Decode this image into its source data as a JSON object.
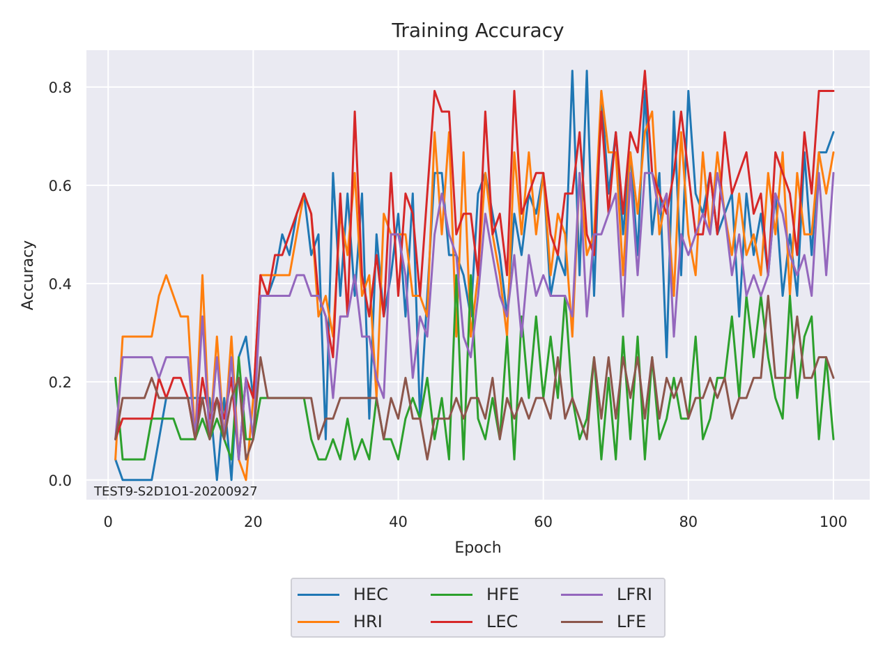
{
  "chart_data": {
    "type": "line",
    "title": "Training Accuracy",
    "xlabel": "Epoch",
    "ylabel": "Accuracy",
    "annotation": "TEST9-S2D1O1-20200927",
    "xlim": [
      -3,
      105
    ],
    "ylim": [
      -0.04,
      0.875
    ],
    "xticks": [
      0,
      20,
      40,
      60,
      80,
      100
    ],
    "yticks": [
      0.0,
      0.2,
      0.4,
      0.6,
      0.8
    ],
    "xtick_labels": [
      "0",
      "20",
      "40",
      "60",
      "80",
      "100"
    ],
    "ytick_labels": [
      "0.0",
      "0.2",
      "0.4",
      "0.6",
      "0.8"
    ],
    "grid": true,
    "legend_position": "below plot, centered, 3 columns",
    "x_start": 1,
    "series": [
      {
        "name": "HEC",
        "color": "#1f77b4",
        "values": [
          0.042,
          0.0,
          0.0,
          0.0,
          0.0,
          0.0,
          0.083,
          0.167,
          0.167,
          0.167,
          0.167,
          0.167,
          0.167,
          0.167,
          0.0,
          0.167,
          0.0,
          0.25,
          0.292,
          0.167,
          0.375,
          0.375,
          0.417,
          0.5,
          0.458,
          0.542,
          0.583,
          0.458,
          0.5,
          0.083,
          0.625,
          0.375,
          0.583,
          0.375,
          0.583,
          0.125,
          0.5,
          0.333,
          0.417,
          0.542,
          0.333,
          0.583,
          0.125,
          0.375,
          0.625,
          0.625,
          0.458,
          0.458,
          0.417,
          0.333,
          0.583,
          0.625,
          0.542,
          0.458,
          0.333,
          0.542,
          0.458,
          0.583,
          0.542,
          0.625,
          0.375,
          0.458,
          0.417,
          0.833,
          0.417,
          0.833,
          0.375,
          0.792,
          0.583,
          0.708,
          0.5,
          0.667,
          0.458,
          0.792,
          0.5,
          0.625,
          0.25,
          0.75,
          0.417,
          0.792,
          0.583,
          0.542,
          0.625,
          0.5,
          0.542,
          0.583,
          0.333,
          0.583,
          0.458,
          0.542,
          0.417,
          0.583,
          0.375,
          0.5,
          0.375,
          0.667,
          0.458,
          0.667,
          0.667,
          0.708
        ]
      },
      {
        "name": "HRI",
        "color": "#ff7f0e",
        "values": [
          0.042,
          0.292,
          0.292,
          0.292,
          0.292,
          0.292,
          0.375,
          0.417,
          0.375,
          0.333,
          0.333,
          0.083,
          0.417,
          0.083,
          0.292,
          0.083,
          0.292,
          0.042,
          0.0,
          0.167,
          0.417,
          0.417,
          0.417,
          0.417,
          0.417,
          0.5,
          0.583,
          0.542,
          0.333,
          0.375,
          0.292,
          0.542,
          0.458,
          0.625,
          0.375,
          0.417,
          0.167,
          0.542,
          0.5,
          0.5,
          0.5,
          0.375,
          0.375,
          0.333,
          0.708,
          0.5,
          0.708,
          0.292,
          0.667,
          0.292,
          0.417,
          0.625,
          0.5,
          0.417,
          0.292,
          0.667,
          0.5,
          0.667,
          0.5,
          0.625,
          0.417,
          0.542,
          0.5,
          0.292,
          0.625,
          0.458,
          0.5,
          0.792,
          0.667,
          0.667,
          0.417,
          0.667,
          0.542,
          0.708,
          0.75,
          0.5,
          0.583,
          0.375,
          0.708,
          0.5,
          0.417,
          0.667,
          0.5,
          0.667,
          0.542,
          0.458,
          0.583,
          0.458,
          0.5,
          0.417,
          0.625,
          0.5,
          0.667,
          0.375,
          0.625,
          0.5,
          0.5,
          0.667,
          0.583,
          0.667
        ]
      },
      {
        "name": "HFE",
        "color": "#2ca02c",
        "values": [
          0.208,
          0.042,
          0.042,
          0.042,
          0.042,
          0.125,
          0.125,
          0.125,
          0.125,
          0.083,
          0.083,
          0.083,
          0.125,
          0.083,
          0.125,
          0.083,
          0.042,
          0.25,
          0.083,
          0.083,
          0.167,
          0.167,
          0.167,
          0.167,
          0.167,
          0.167,
          0.167,
          0.083,
          0.042,
          0.042,
          0.083,
          0.042,
          0.125,
          0.042,
          0.083,
          0.042,
          0.167,
          0.083,
          0.083,
          0.042,
          0.125,
          0.167,
          0.125,
          0.208,
          0.083,
          0.167,
          0.042,
          0.417,
          0.042,
          0.417,
          0.125,
          0.083,
          0.167,
          0.083,
          0.292,
          0.042,
          0.333,
          0.167,
          0.333,
          0.167,
          0.292,
          0.167,
          0.375,
          0.167,
          0.083,
          0.125,
          0.25,
          0.042,
          0.208,
          0.042,
          0.292,
          0.083,
          0.292,
          0.042,
          0.25,
          0.083,
          0.125,
          0.208,
          0.125,
          0.125,
          0.292,
          0.083,
          0.125,
          0.208,
          0.208,
          0.333,
          0.167,
          0.375,
          0.25,
          0.375,
          0.25,
          0.167,
          0.125,
          0.375,
          0.167,
          0.292,
          0.333,
          0.083,
          0.25,
          0.083
        ]
      },
      {
        "name": "LEC",
        "color": "#d62728",
        "values": [
          0.083,
          0.125,
          0.125,
          0.125,
          0.125,
          0.125,
          0.208,
          0.167,
          0.208,
          0.208,
          0.167,
          0.083,
          0.208,
          0.125,
          0.167,
          0.125,
          0.208,
          0.042,
          0.208,
          0.167,
          0.417,
          0.375,
          0.458,
          0.458,
          0.5,
          0.542,
          0.583,
          0.542,
          0.375,
          0.333,
          0.25,
          0.583,
          0.333,
          0.75,
          0.417,
          0.333,
          0.458,
          0.333,
          0.625,
          0.375,
          0.583,
          0.542,
          0.375,
          0.583,
          0.792,
          0.75,
          0.75,
          0.5,
          0.542,
          0.542,
          0.417,
          0.75,
          0.5,
          0.542,
          0.417,
          0.792,
          0.542,
          0.583,
          0.625,
          0.625,
          0.5,
          0.458,
          0.583,
          0.583,
          0.708,
          0.5,
          0.458,
          0.75,
          0.542,
          0.708,
          0.542,
          0.708,
          0.667,
          0.833,
          0.625,
          0.583,
          0.542,
          0.625,
          0.75,
          0.625,
          0.5,
          0.5,
          0.625,
          0.5,
          0.708,
          0.583,
          0.625,
          0.667,
          0.542,
          0.583,
          0.417,
          0.667,
          0.625,
          0.583,
          0.458,
          0.708,
          0.583,
          0.792,
          0.792,
          0.792
        ]
      },
      {
        "name": "LFRI",
        "color": "#9467bd",
        "values": [
          0.083,
          0.25,
          0.25,
          0.25,
          0.25,
          0.25,
          0.208,
          0.25,
          0.25,
          0.25,
          0.25,
          0.083,
          0.333,
          0.083,
          0.25,
          0.083,
          0.25,
          0.042,
          0.208,
          0.083,
          0.375,
          0.375,
          0.375,
          0.375,
          0.375,
          0.417,
          0.417,
          0.375,
          0.375,
          0.333,
          0.167,
          0.333,
          0.333,
          0.417,
          0.292,
          0.292,
          0.208,
          0.167,
          0.5,
          0.5,
          0.417,
          0.208,
          0.333,
          0.292,
          0.5,
          0.583,
          0.5,
          0.458,
          0.292,
          0.25,
          0.375,
          0.542,
          0.458,
          0.375,
          0.333,
          0.458,
          0.292,
          0.458,
          0.375,
          0.417,
          0.375,
          0.375,
          0.375,
          0.333,
          0.625,
          0.333,
          0.5,
          0.5,
          0.542,
          0.583,
          0.333,
          0.625,
          0.417,
          0.625,
          0.625,
          0.542,
          0.583,
          0.292,
          0.5,
          0.458,
          0.5,
          0.542,
          0.5,
          0.625,
          0.542,
          0.417,
          0.5,
          0.375,
          0.417,
          0.375,
          0.417,
          0.583,
          0.542,
          0.458,
          0.417,
          0.458,
          0.375,
          0.625,
          0.417,
          0.625
        ]
      },
      {
        "name": "LFE",
        "color": "#8c564b",
        "values": [
          0.083,
          0.167,
          0.167,
          0.167,
          0.167,
          0.208,
          0.167,
          0.167,
          0.167,
          0.167,
          0.167,
          0.083,
          0.167,
          0.083,
          0.167,
          0.083,
          0.167,
          0.208,
          0.042,
          0.083,
          0.25,
          0.167,
          0.167,
          0.167,
          0.167,
          0.167,
          0.167,
          0.167,
          0.083,
          0.125,
          0.125,
          0.167,
          0.167,
          0.167,
          0.167,
          0.167,
          0.167,
          0.083,
          0.167,
          0.125,
          0.208,
          0.125,
          0.125,
          0.042,
          0.125,
          0.125,
          0.125,
          0.167,
          0.125,
          0.167,
          0.167,
          0.125,
          0.208,
          0.083,
          0.167,
          0.125,
          0.167,
          0.125,
          0.167,
          0.167,
          0.125,
          0.25,
          0.125,
          0.167,
          0.125,
          0.083,
          0.25,
          0.125,
          0.25,
          0.125,
          0.25,
          0.167,
          0.25,
          0.125,
          0.25,
          0.125,
          0.208,
          0.167,
          0.208,
          0.125,
          0.167,
          0.167,
          0.208,
          0.167,
          0.208,
          0.125,
          0.167,
          0.167,
          0.208,
          0.208,
          0.375,
          0.208,
          0.208,
          0.208,
          0.333,
          0.208,
          0.208,
          0.25,
          0.25,
          0.208
        ]
      }
    ]
  }
}
